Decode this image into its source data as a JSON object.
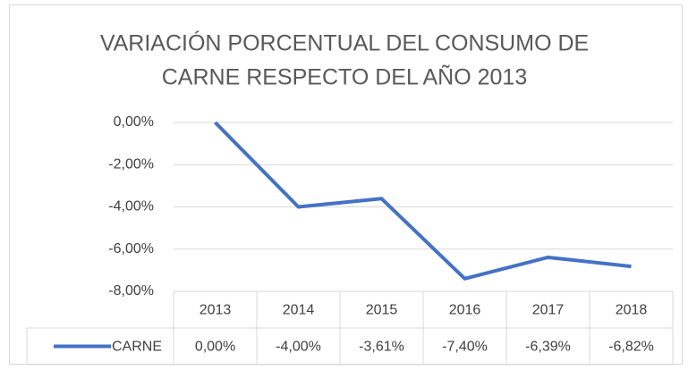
{
  "chart_data": {
    "type": "line",
    "title": [
      "VARIACIÓN PORCENTUAL DEL CONSUMO DE",
      "CARNE RESPECTO DEL AÑO 2013"
    ],
    "categories": [
      "2013",
      "2014",
      "2015",
      "2016",
      "2017",
      "2018"
    ],
    "series": [
      {
        "name": "CARNE",
        "color": "#4472c4",
        "values": [
          0,
          -4,
          -3.61,
          -7.4,
          -6.39,
          -6.82
        ],
        "value_labels": [
          "0,00%",
          "-4,00%",
          "-3,61%",
          "-7,40%",
          "-6,39%",
          "-6,82%"
        ]
      }
    ],
    "ylim": [
      -8,
      0
    ],
    "yticks": [
      {
        "value": 0,
        "label": "0,00%"
      },
      {
        "value": -2,
        "label": "-2,00%"
      },
      {
        "value": -4,
        "label": "-4,00%"
      },
      {
        "value": -6,
        "label": "-6,00%"
      },
      {
        "value": -8,
        "label": "-8,00%"
      }
    ],
    "grid": true,
    "legend": "bottom"
  }
}
